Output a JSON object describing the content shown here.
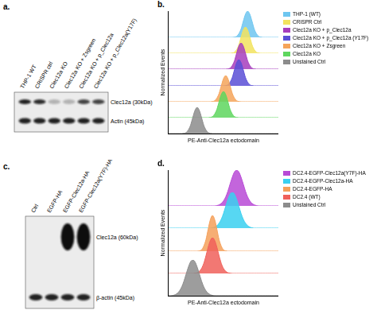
{
  "chart_data": [
    {
      "type": "ridgeline",
      "panel_label": "b.",
      "x_label": "PE-Anti-Clec12a ectodomain",
      "y_label": "Normalized Events",
      "xlim": [
        0,
        100
      ],
      "ylim": [
        0,
        100
      ],
      "tick_labels": false,
      "grid": false,
      "legend": "right",
      "x": [
        0,
        2,
        4,
        6,
        8,
        10,
        12,
        14,
        16,
        18,
        20,
        22,
        24,
        26,
        28,
        30,
        32,
        34,
        36,
        38,
        40,
        42,
        44,
        46,
        48,
        50,
        52,
        54,
        56,
        58,
        60,
        62,
        64,
        66,
        68,
        70,
        72,
        74,
        76,
        78,
        80,
        82,
        84,
        86,
        88,
        90,
        92,
        94,
        96,
        98,
        100
      ],
      "series": [
        {
          "name": "THP-1 (WT)",
          "color": "#6ec6f0",
          "values": [
            0,
            0,
            0,
            0,
            0,
            0,
            0,
            0,
            0,
            0,
            0,
            0,
            0,
            0,
            0,
            0,
            0,
            0,
            0,
            0,
            0,
            0,
            0,
            0,
            0,
            0,
            0,
            0,
            0,
            0,
            1,
            4,
            14,
            32,
            61,
            88,
            100,
            88,
            61,
            32,
            14,
            4,
            1,
            0,
            0,
            0,
            0,
            0,
            0,
            0,
            0
          ]
        },
        {
          "name": "CRISPR Ctrl",
          "color": "#f2e35e",
          "values": [
            0,
            0,
            0,
            0,
            0,
            0,
            0,
            0,
            0,
            0,
            0,
            0,
            0,
            0,
            0,
            0,
            0,
            0,
            0,
            0,
            0,
            0,
            0,
            0,
            0,
            0,
            0,
            0,
            0,
            1,
            4,
            14,
            32,
            61,
            88,
            100,
            88,
            61,
            32,
            14,
            4,
            1,
            0,
            0,
            0,
            0,
            0,
            0,
            0,
            0,
            0
          ]
        },
        {
          "name": "Clec12a KO + p_Clec12a",
          "color": "#a63dbd",
          "values": [
            0,
            0,
            0,
            0,
            0,
            0,
            0,
            0,
            0,
            0,
            0,
            0,
            0,
            0,
            0,
            0,
            0,
            0,
            0,
            0,
            0,
            0,
            0,
            0,
            0,
            0,
            0,
            1,
            4,
            14,
            32,
            61,
            88,
            100,
            88,
            61,
            32,
            14,
            4,
            1,
            0,
            0,
            0,
            0,
            0,
            0,
            0,
            0,
            0,
            0,
            0
          ]
        },
        {
          "name": "Clec12a KO + p_Clec12a (Y17F)",
          "color": "#5a4fd6",
          "values": [
            0,
            0,
            0,
            0,
            0,
            0,
            0,
            0,
            0,
            0,
            0,
            0,
            0,
            0,
            0,
            0,
            0,
            0,
            0,
            0,
            0,
            0,
            0,
            0,
            0,
            0,
            1,
            4,
            14,
            32,
            61,
            88,
            100,
            88,
            61,
            32,
            14,
            4,
            1,
            0,
            0,
            0,
            0,
            0,
            0,
            0,
            0,
            0,
            0,
            0,
            0
          ]
        },
        {
          "name": "Clec12a KO + Zsgreen",
          "color": "#f5a45a",
          "values": [
            0,
            0,
            0,
            0,
            0,
            0,
            0,
            0,
            0,
            0,
            0,
            0,
            0,
            0,
            0,
            0,
            0,
            0,
            0,
            0,
            1,
            4,
            14,
            32,
            61,
            88,
            100,
            88,
            61,
            32,
            14,
            4,
            1,
            0,
            0,
            0,
            0,
            0,
            0,
            0,
            0,
            0,
            0,
            0,
            0,
            0,
            0,
            0,
            0,
            0,
            0
          ]
        },
        {
          "name": "Clec12a KO",
          "color": "#5ed65e",
          "values": [
            0,
            0,
            0,
            0,
            0,
            0,
            0,
            0,
            0,
            0,
            0,
            0,
            0,
            0,
            0,
            0,
            0,
            0,
            0,
            1,
            4,
            14,
            32,
            61,
            88,
            100,
            88,
            61,
            32,
            14,
            4,
            1,
            0,
            0,
            0,
            0,
            0,
            0,
            0,
            0,
            0,
            0,
            0,
            0,
            0,
            0,
            0,
            0,
            0,
            0,
            0
          ]
        },
        {
          "name": "Unstained Ctrl",
          "color": "#8c8c8c",
          "values": [
            0,
            0,
            0,
            0,
            0,
            0,
            0,
            1,
            4,
            14,
            32,
            61,
            88,
            100,
            88,
            61,
            32,
            14,
            4,
            1,
            0,
            0,
            0,
            0,
            0,
            0,
            0,
            0,
            0,
            0,
            0,
            0,
            0,
            0,
            0,
            0,
            0,
            0,
            0,
            0,
            0,
            0,
            0,
            0,
            0,
            0,
            0,
            0,
            0,
            0,
            0
          ]
        }
      ]
    },
    {
      "type": "ridgeline",
      "panel_label": "d.",
      "x_label": "PE-Anti-Clec12a ectodomain",
      "y_label": "Normalized Events",
      "xlim": [
        0,
        100
      ],
      "ylim": [
        0,
        100
      ],
      "tick_labels": false,
      "grid": false,
      "legend": "right",
      "x": [
        0,
        2,
        4,
        6,
        8,
        10,
        12,
        14,
        16,
        18,
        20,
        22,
        24,
        26,
        28,
        30,
        32,
        34,
        36,
        38,
        40,
        42,
        44,
        46,
        48,
        50,
        52,
        54,
        56,
        58,
        60,
        62,
        64,
        66,
        68,
        70,
        72,
        74,
        76,
        78,
        80,
        82,
        84,
        86,
        88,
        90,
        92,
        94,
        96,
        98,
        100
      ],
      "series": [
        {
          "name": "DC2.4-EGFP-Clec12a(Y7F)-HA",
          "color": "#b84ad6",
          "values": [
            0,
            0,
            0,
            0,
            0,
            0,
            0,
            0,
            0,
            0,
            0,
            0,
            0,
            0,
            0,
            0,
            0,
            0,
            0,
            0,
            0,
            0,
            1,
            3,
            7,
            14,
            25,
            41,
            61,
            80,
            95,
            100,
            95,
            80,
            61,
            41,
            25,
            14,
            7,
            3,
            1,
            0,
            0,
            0,
            0,
            0,
            0,
            0,
            0,
            0,
            0
          ]
        },
        {
          "name": "DC2.4-EGFP-Clec12a-HA",
          "color": "#3ad0f0",
          "values": [
            0,
            0,
            0,
            0,
            0,
            0,
            0,
            0,
            0,
            0,
            0,
            0,
            0,
            0,
            0,
            0,
            0,
            0,
            0,
            0,
            1,
            3,
            7,
            14,
            25,
            41,
            61,
            80,
            95,
            100,
            95,
            80,
            61,
            41,
            25,
            14,
            7,
            3,
            1,
            0,
            0,
            0,
            0,
            0,
            0,
            0,
            0,
            0,
            0,
            0,
            0
          ]
        },
        {
          "name": "DC2.4-EGFP-HA",
          "color": "#f5a05a",
          "values": [
            0,
            0,
            0,
            0,
            0,
            0,
            0,
            0,
            0,
            0,
            0,
            0,
            0,
            0,
            1,
            4,
            14,
            32,
            61,
            88,
            100,
            88,
            61,
            32,
            14,
            4,
            1,
            0,
            0,
            0,
            0,
            0,
            0,
            0,
            0,
            0,
            0,
            0,
            0,
            0,
            0,
            0,
            0,
            0,
            0,
            0,
            0,
            0,
            0,
            0,
            0
          ]
        },
        {
          "name": "DC2.4 (WT)",
          "color": "#f0605a",
          "values": [
            0,
            0,
            0,
            0,
            0,
            0,
            0,
            0,
            0,
            0,
            0,
            0,
            1,
            2,
            6,
            14,
            28,
            49,
            73,
            92,
            100,
            92,
            73,
            49,
            28,
            14,
            6,
            2,
            1,
            0,
            0,
            0,
            0,
            0,
            0,
            0,
            0,
            0,
            0,
            0,
            0,
            0,
            0,
            0,
            0,
            0,
            0,
            0,
            0,
            0,
            0
          ]
        },
        {
          "name": "Unstained Ctrl",
          "color": "#8c8c8c",
          "values": [
            0,
            0,
            1,
            3,
            7,
            14,
            25,
            41,
            61,
            80,
            95,
            100,
            95,
            80,
            61,
            41,
            25,
            14,
            7,
            3,
            1,
            0,
            0,
            0,
            0,
            0,
            0,
            0,
            0,
            0,
            0,
            0,
            0,
            0,
            0,
            0,
            0,
            0,
            0,
            0,
            0,
            0,
            0,
            0,
            0,
            0,
            0,
            0,
            0,
            0,
            0
          ]
        }
      ]
    }
  ],
  "blots": [
    {
      "panel_label": "a.",
      "lanes": [
        "THP-1 WT",
        "CRISPR ctrl",
        "Clec12a KO",
        "Clec12a KO + Zsgreen",
        "Clec12a KO + p_Clec12a",
        "Clec12a KO + p_Clec12a(Y17F)"
      ],
      "bands": [
        {
          "label": "Clec12a (30kDa)",
          "intensities": [
            0.9,
            0.85,
            0.25,
            0.25,
            0.75,
            0.75
          ]
        },
        {
          "label": "Actin (45kDa)",
          "intensities": [
            0.9,
            0.9,
            0.9,
            0.9,
            0.9,
            0.9
          ]
        }
      ]
    },
    {
      "panel_label": "c.",
      "lanes": [
        "Ctrl",
        "EGFP-HA",
        "EGFP-Clec12a-HA",
        "EGFP-Clec12a(Y7F)-HA"
      ],
      "bands": [
        {
          "label": "Clec12a (60kDa)",
          "intensities": [
            0,
            0,
            1,
            1
          ]
        },
        {
          "label": "β-actin (45kDa)",
          "intensities": [
            0.9,
            0.9,
            0.9,
            0.9
          ]
        }
      ]
    }
  ]
}
